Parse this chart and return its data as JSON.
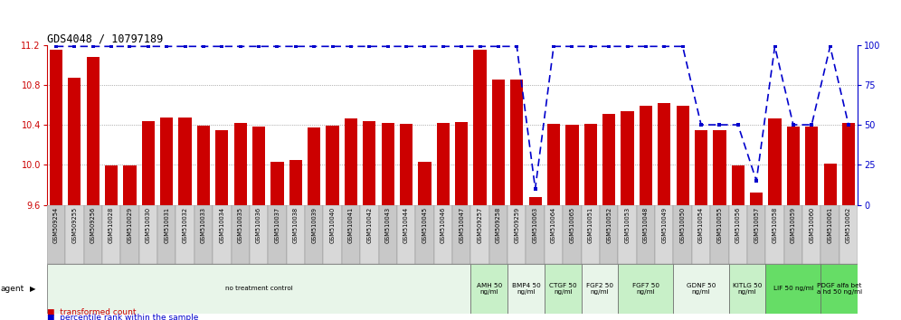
{
  "title": "GDS4048 / 10797189",
  "bar_color": "#cc0000",
  "dot_color": "#0000cc",
  "ylim_left": [
    9.6,
    11.2
  ],
  "ylim_right": [
    0,
    100
  ],
  "yticks_left": [
    9.6,
    10.0,
    10.4,
    10.8,
    11.2
  ],
  "yticks_right": [
    0,
    25,
    50,
    75,
    100
  ],
  "categories": [
    "GSM509254",
    "GSM509255",
    "GSM509256",
    "GSM510028",
    "GSM510029",
    "GSM510030",
    "GSM510031",
    "GSM510032",
    "GSM510033",
    "GSM510034",
    "GSM510035",
    "GSM510036",
    "GSM510037",
    "GSM510038",
    "GSM510039",
    "GSM510040",
    "GSM510041",
    "GSM510042",
    "GSM510043",
    "GSM510044",
    "GSM510045",
    "GSM510046",
    "GSM510047",
    "GSM509257",
    "GSM509258",
    "GSM509259",
    "GSM510063",
    "GSM510064",
    "GSM510065",
    "GSM510051",
    "GSM510052",
    "GSM510053",
    "GSM510048",
    "GSM510049",
    "GSM510050",
    "GSM510054",
    "GSM510055",
    "GSM510056",
    "GSM510057",
    "GSM510058",
    "GSM510059",
    "GSM510060",
    "GSM510061",
    "GSM510062"
  ],
  "bar_values": [
    11.15,
    10.87,
    11.08,
    9.99,
    9.99,
    10.44,
    10.47,
    10.47,
    10.39,
    10.35,
    10.42,
    10.38,
    10.03,
    10.05,
    10.37,
    10.39,
    10.46,
    10.44,
    10.42,
    10.41,
    10.03,
    10.42,
    10.43,
    11.15,
    10.85,
    10.85,
    9.68,
    10.41,
    10.4,
    10.41,
    10.51,
    10.54,
    10.59,
    10.62,
    10.59,
    10.35,
    10.35,
    9.99,
    9.72,
    10.46,
    10.38,
    10.38,
    10.01,
    10.42
  ],
  "dot_values": [
    99,
    99,
    99,
    99,
    99,
    99,
    99,
    99,
    99,
    99,
    99,
    99,
    99,
    99,
    99,
    99,
    99,
    99,
    99,
    99,
    99,
    99,
    99,
    99,
    99,
    99,
    10,
    99,
    99,
    99,
    99,
    99,
    99,
    99,
    99,
    50,
    50,
    50,
    15,
    99,
    50,
    50,
    99,
    50
  ],
  "agent_groups": [
    {
      "label": "no treatment control",
      "count": 23,
      "color": "#e8f5e9"
    },
    {
      "label": "AMH 50\nng/ml",
      "count": 2,
      "color": "#c8f0c8"
    },
    {
      "label": "BMP4 50\nng/ml",
      "count": 2,
      "color": "#e8f5e9"
    },
    {
      "label": "CTGF 50\nng/ml",
      "count": 2,
      "color": "#c8f0c8"
    },
    {
      "label": "FGF2 50\nng/ml",
      "count": 2,
      "color": "#e8f5e9"
    },
    {
      "label": "FGF7 50\nng/ml",
      "count": 3,
      "color": "#c8f0c8"
    },
    {
      "label": "GDNF 50\nng/ml",
      "count": 3,
      "color": "#e8f5e9"
    },
    {
      "label": "KITLG 50\nng/ml",
      "count": 2,
      "color": "#c8f0c8"
    },
    {
      "label": "LIF 50 ng/ml",
      "count": 3,
      "color": "#66dd66"
    },
    {
      "label": "PDGF alfa bet\na hd 50 ng/ml",
      "count": 2,
      "color": "#66dd66"
    }
  ],
  "no_treat_count": 23,
  "background_color": "#ffffff"
}
